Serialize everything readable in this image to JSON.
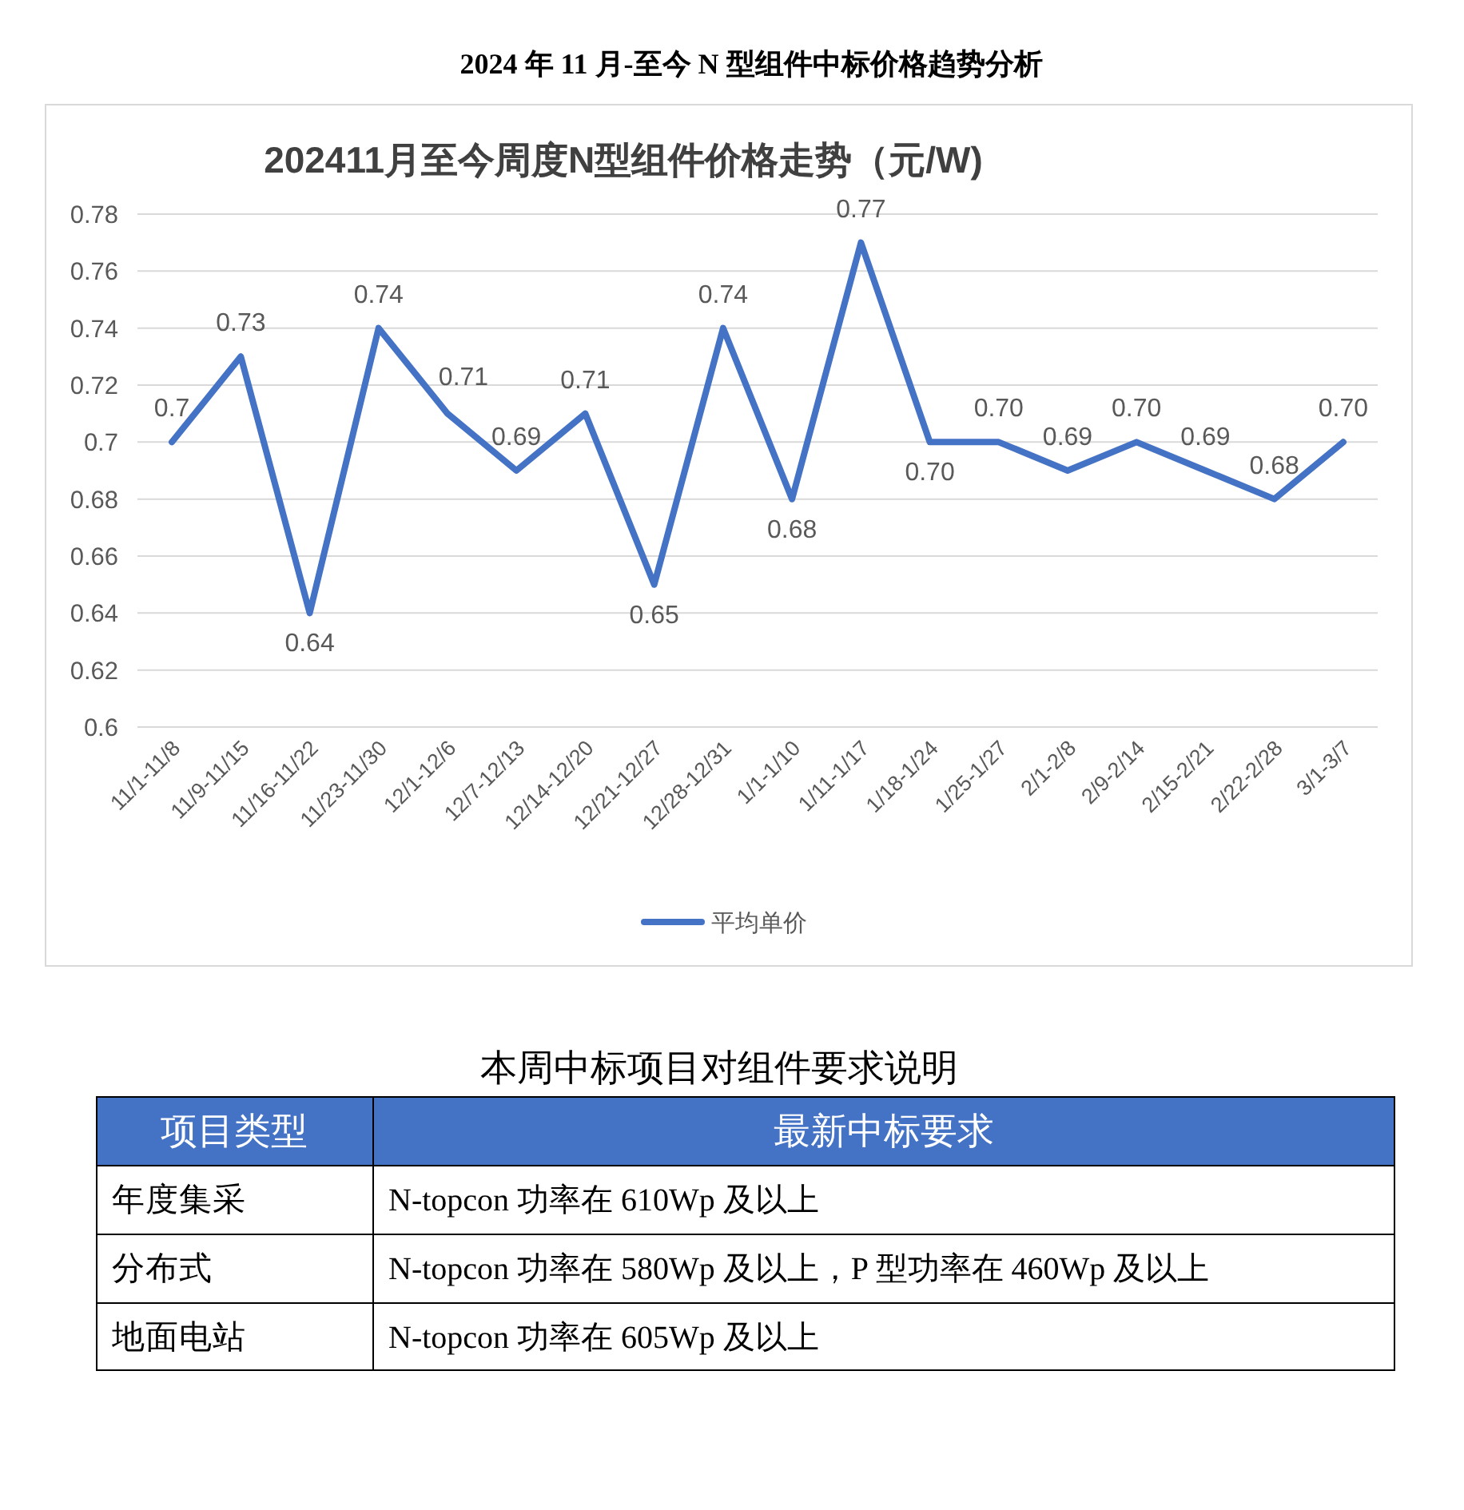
{
  "chart_data": [
    {
      "type": "line",
      "title": "202411月至今周度N型组件价格走势（元/W)",
      "annotations": [
        "2024 年 11 月-至今 N 型组件中标价格趋势分析"
      ],
      "categories": [
        "11/1-11/8",
        "11/9-11/15",
        "11/16-11/22",
        "11/23-11/30",
        "12/1-12/6",
        "12/7-12/13",
        "12/14-12/20",
        "12/21-12/27",
        "12/28-12/31",
        "1/1-1/10",
        "1/11-1/17",
        "1/18-1/24",
        "1/25-1/27",
        "2/1-2/8",
        "2/9-2/14",
        "2/15-2/21",
        "2/22-2/28",
        "3/1-3/7"
      ],
      "series": [
        {
          "name": "平均单价",
          "color": "#4472c4",
          "values": [
            0.7,
            0.73,
            0.64,
            0.74,
            0.71,
            0.69,
            0.71,
            0.65,
            0.74,
            0.68,
            0.77,
            0.7,
            0.7,
            0.69,
            0.7,
            0.69,
            0.68,
            0.7
          ],
          "value_labels": [
            "0.7",
            "0.73",
            "0.64",
            "0.74",
            "0.71",
            "0.69",
            "0.71",
            "0.65",
            "0.74",
            "0.68",
            "0.77",
            "0.70",
            "0.70",
            "0.69",
            "0.70",
            "0.69",
            "0.68",
            "0.70"
          ]
        }
      ],
      "ylim": [
        0.6,
        0.78
      ],
      "yticks": [
        0.6,
        0.62,
        0.64,
        0.66,
        0.68,
        0.7,
        0.72,
        0.74,
        0.76,
        0.78
      ],
      "grid": "y",
      "legend": "bottom",
      "line_style": "solid"
    },
    {
      "type": "other",
      "title": "本周中标项目对组件要求说明",
      "categories": [
        "项目类型",
        "最新中标要求"
      ],
      "y_categories": [
        "年度集采",
        "分布式",
        "地面电站"
      ],
      "cell_labels": [
        [
          "N-topcon 功率在 610Wp 及以上"
        ],
        [
          "N-topcon 功率在 580Wp 及以上，P 型功率在 460Wp 及以上"
        ],
        [
          "N-topcon 功率在 605Wp 及以上"
        ]
      ]
    }
  ]
}
